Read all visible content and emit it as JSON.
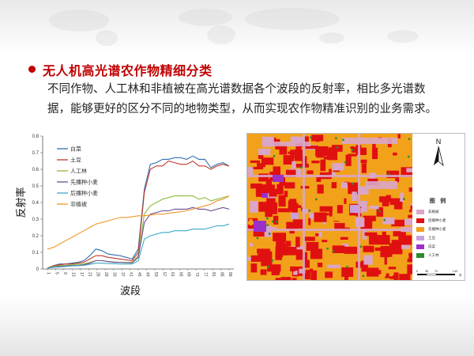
{
  "slide": {
    "title": "无人机高光谱农作物精细分类",
    "paragraph_lines": [
      "不同作物、人工林和非植被在高光谱数据各个波段的反射率，相比多光谱数",
      "据，能够更好的区分不同的地物类型，从而实现农作物精准识别的业务需求。"
    ]
  },
  "chart_data": {
    "type": "line",
    "xlabel": "波段",
    "ylabel": "反射率",
    "ylim": [
      0,
      0.8
    ],
    "yticks": [
      "0",
      "0.1",
      "0.2",
      "0.3",
      "0.4",
      "0.5",
      "0.6",
      "0.7",
      "0.8"
    ],
    "xticks": [
      "1",
      "5",
      "9",
      "13",
      "17",
      "21",
      "25",
      "29",
      "33",
      "37",
      "41",
      "45",
      "49",
      "53",
      "57",
      "61",
      "65",
      "69",
      "73",
      "77",
      "81",
      "85",
      "89"
    ],
    "legend_position": "top-left",
    "series": [
      {
        "name": "白菜",
        "color": "#2f6fb0",
        "values": [
          0.005,
          0.02,
          0.03,
          0.03,
          0.035,
          0.04,
          0.05,
          0.08,
          0.12,
          0.11,
          0.09,
          0.085,
          0.08,
          0.07,
          0.06,
          0.12,
          0.48,
          0.63,
          0.64,
          0.66,
          0.66,
          0.67,
          0.67,
          0.66,
          0.68,
          0.66,
          0.66,
          0.61,
          0.63,
          0.64,
          0.62
        ]
      },
      {
        "name": "土豆",
        "color": "#c0392b",
        "values": [
          0.005,
          0.02,
          0.025,
          0.03,
          0.03,
          0.035,
          0.04,
          0.06,
          0.08,
          0.08,
          0.07,
          0.065,
          0.06,
          0.055,
          0.05,
          0.1,
          0.46,
          0.6,
          0.62,
          0.62,
          0.65,
          0.64,
          0.63,
          0.63,
          0.65,
          0.62,
          0.62,
          0.6,
          0.62,
          0.63,
          0.62
        ]
      },
      {
        "name": "人工林",
        "color": "#8fba3c",
        "values": [
          0.005,
          0.015,
          0.02,
          0.022,
          0.025,
          0.028,
          0.03,
          0.04,
          0.05,
          0.05,
          0.045,
          0.042,
          0.04,
          0.04,
          0.04,
          0.08,
          0.33,
          0.38,
          0.4,
          0.42,
          0.43,
          0.44,
          0.44,
          0.44,
          0.44,
          0.42,
          0.43,
          0.41,
          0.42,
          0.43,
          0.44
        ]
      },
      {
        "name": "先播种小麦",
        "color": "#6a4c93",
        "values": [
          0.005,
          0.012,
          0.015,
          0.018,
          0.02,
          0.022,
          0.025,
          0.035,
          0.05,
          0.05,
          0.045,
          0.04,
          0.04,
          0.038,
          0.037,
          0.07,
          0.28,
          0.33,
          0.34,
          0.35,
          0.35,
          0.36,
          0.36,
          0.36,
          0.37,
          0.36,
          0.36,
          0.35,
          0.36,
          0.37,
          0.36
        ]
      },
      {
        "name": "后播种小麦",
        "color": "#3fa7c8",
        "values": [
          0.005,
          0.01,
          0.012,
          0.015,
          0.018,
          0.02,
          0.022,
          0.028,
          0.035,
          0.035,
          0.033,
          0.032,
          0.03,
          0.03,
          0.03,
          0.05,
          0.18,
          0.2,
          0.21,
          0.22,
          0.22,
          0.23,
          0.23,
          0.23,
          0.24,
          0.24,
          0.24,
          0.25,
          0.26,
          0.26,
          0.27
        ]
      },
      {
        "name": "非植被",
        "color": "#f0962a",
        "values": [
          0.12,
          0.13,
          0.15,
          0.17,
          0.19,
          0.21,
          0.23,
          0.25,
          0.27,
          0.28,
          0.29,
          0.3,
          0.31,
          0.31,
          0.315,
          0.32,
          0.32,
          0.325,
          0.33,
          0.33,
          0.335,
          0.34,
          0.345,
          0.35,
          0.36,
          0.37,
          0.38,
          0.39,
          0.41,
          0.42,
          0.44
        ]
      }
    ]
  },
  "map": {
    "north_label": "N",
    "legend_title": "图 例",
    "legend": [
      {
        "label": "非植被",
        "color": "#d9a6c8"
      },
      {
        "label": "后播种小麦",
        "color": "#e01010"
      },
      {
        "label": "先播种小麦",
        "color": "#f2a21a"
      },
      {
        "label": "土豆",
        "color": "#c9a0dc"
      },
      {
        "label": "白菜",
        "color": "#9b30c9"
      },
      {
        "label": "人工林",
        "color": "#2e8b2e"
      }
    ],
    "scale_labels": [
      "0",
      "35",
      "70",
      "140"
    ],
    "scale_unit": "米"
  }
}
